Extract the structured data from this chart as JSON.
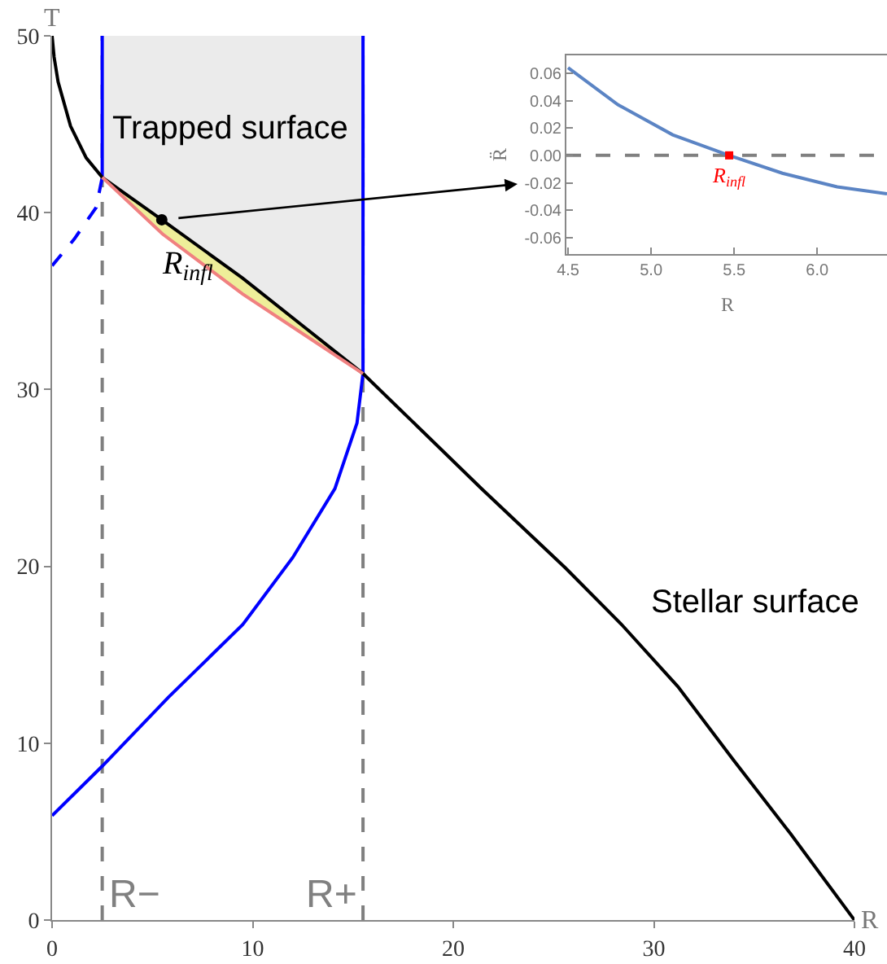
{
  "chart_data": [
    {
      "type": "line",
      "xlabel": "R",
      "ylabel": "T",
      "xlim": [
        0,
        40
      ],
      "ylim": [
        0,
        50
      ],
      "xticks": [
        0,
        10,
        20,
        30,
        40
      ],
      "yticks": [
        0,
        10,
        20,
        30,
        40,
        50
      ],
      "grid": false,
      "series": [
        {
          "color": "#0000ff",
          "line_style": "dashed",
          "x": [
            0,
            1.1,
            2.2,
            2.5
          ],
          "values": [
            37.0,
            38.5,
            40.3,
            42.0
          ]
        },
        {
          "color": "#0000ff",
          "line_style": "solid",
          "x": [
            2.5,
            2.5
          ],
          "values": [
            42.0,
            50
          ]
        },
        {
          "color": "#0000ff",
          "line_style": "solid",
          "x": [
            0,
            2.5,
            5.8,
            9.5,
            12,
            14.1,
            15.2,
            15.5,
            15.5
          ],
          "values": [
            5.9,
            8.7,
            12.6,
            16.7,
            20.5,
            24.4,
            28.1,
            30.9,
            50
          ]
        },
        {
          "color": "#000000",
          "line_style": "solid",
          "x": [
            0,
            0.1,
            0.3,
            0.92,
            1.7,
            2.5,
            5.47,
            9.5,
            12.5,
            15.5,
            18.5,
            21.4,
            25.6,
            28.4,
            31.2,
            34.0,
            36.8,
            40
          ],
          "values": [
            50,
            48.8,
            47.4,
            44.9,
            43.1,
            42.0,
            39.6,
            36.3,
            33.6,
            30.9,
            27.6,
            24.4,
            19.9,
            16.7,
            13.2,
            9.0,
            4.9,
            0
          ],
          "lower": [
            null,
            null,
            null,
            null,
            null,
            42.0,
            39.6,
            36.3,
            33.6,
            30.9,
            null,
            null,
            null,
            null,
            null,
            null,
            null,
            null
          ],
          "upper": [
            null,
            null,
            null,
            null,
            null,
            50,
            50,
            50,
            50,
            50,
            null,
            null,
            null,
            null,
            null,
            null,
            null,
            null
          ]
        },
        {
          "color": "#f08080",
          "line_style": "solid",
          "x": [
            2.5,
            5.5,
            9.5,
            13.5,
            15.5
          ],
          "values": [
            42.0,
            38.8,
            35.4,
            32.4,
            30.9
          ],
          "lower": [
            42.0,
            38.8,
            35.4,
            32.4,
            30.9
          ],
          "upper": [
            42.0,
            39.6,
            36.3,
            32.8,
            30.9
          ]
        },
        {
          "type": "scatter",
          "color": "#000000",
          "marker": "circle",
          "x": [
            5.47
          ],
          "values": [
            39.6
          ]
        }
      ],
      "ref_lines": [
        {
          "axis": "x",
          "value": 2.5,
          "label": "R−",
          "color": "#808080",
          "line_style": "dashed"
        },
        {
          "axis": "x",
          "value": 15.5,
          "label": "R+",
          "color": "#808080",
          "line_style": "dashed"
        }
      ],
      "annotations": [
        "Trapped surface",
        "R$_{infl}$",
        "Stellar surface"
      ]
    },
    {
      "type": "line",
      "xlabel": "R",
      "ylabel": "R̈",
      "xlim": [
        4.49,
        6.42
      ],
      "ylim": [
        -0.072,
        0.073
      ],
      "xticks": [
        {
          "value": 4.5,
          "label": "4.5"
        },
        {
          "value": 5,
          "label": "5.0"
        },
        {
          "value": 5.5,
          "label": "5.5"
        },
        {
          "value": 6,
          "label": "6.0"
        }
      ],
      "yticks": [
        {
          "value": -0.06,
          "label": "-0.06"
        },
        {
          "value": -0.04,
          "label": "-0.04"
        },
        {
          "value": -0.02,
          "label": "-0.02"
        },
        {
          "value": 0,
          "label": "0.00"
        },
        {
          "value": 0.02,
          "label": "0.02"
        },
        {
          "value": 0.04,
          "label": "0.04"
        },
        {
          "value": 0.06,
          "label": "0.06"
        }
      ],
      "grid": false,
      "series": [
        {
          "color": "#5b84c4",
          "line_style": "solid",
          "x": [
            4.5,
            4.8,
            5.13,
            5.47,
            5.79,
            6.12,
            6.42
          ],
          "values": [
            0.064,
            0.037,
            0.015,
            0,
            -0.013,
            -0.023,
            -0.028
          ]
        },
        {
          "type": "scatter",
          "color": "#ff0000",
          "marker": "square",
          "x": [
            5.47
          ],
          "values": [
            0
          ]
        }
      ],
      "ref_lines": [
        {
          "axis": "y",
          "value": 0,
          "color": "#808080",
          "line_style": "dashed"
        }
      ],
      "annotations": [
        {
          "text": "R$_{infl}$",
          "x": 5.47,
          "y": 0
        }
      ]
    }
  ]
}
